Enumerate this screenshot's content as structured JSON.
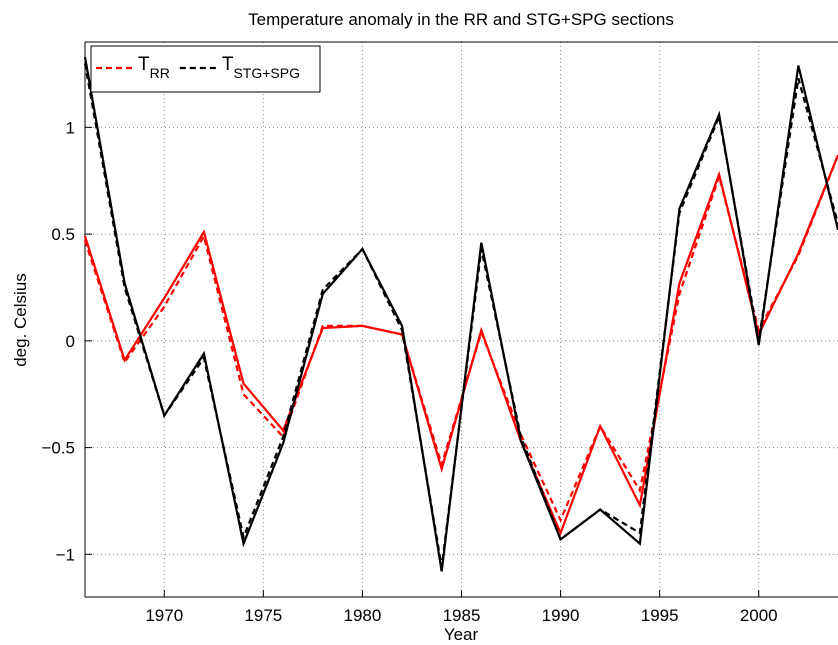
{
  "chart_data": {
    "type": "line",
    "title": "Temperature anomaly in the RR and STG+SPG sections",
    "x_label": "Year",
    "y_label": "deg. Celsius",
    "x": [
      1966,
      1968,
      1970,
      1972,
      1974,
      1976,
      1978,
      1980,
      1982,
      1984,
      1986,
      1988,
      1990,
      1992,
      1994,
      1996,
      1998,
      2000,
      2002,
      2004
    ],
    "series": [
      {
        "color": "#ff0000",
        "dashed": false,
        "values": [
          0.49,
          -0.09,
          0.2,
          0.51,
          -0.2,
          -0.42,
          0.06,
          0.07,
          0.03,
          -0.6,
          0.05,
          -0.47,
          -0.9,
          -0.4,
          -0.77,
          0.27,
          0.78,
          0.03,
          0.41,
          0.87
        ]
      },
      {
        "name": "T",
        "name_sub": "RR",
        "color": "#ff0000",
        "dashed": true,
        "values": [
          0.47,
          -0.1,
          0.16,
          0.49,
          -0.25,
          -0.45,
          0.07,
          0.07,
          0.03,
          -0.58,
          0.04,
          -0.44,
          -0.84,
          -0.4,
          -0.7,
          0.22,
          0.77,
          0.05,
          0.4,
          0.87
        ]
      },
      {
        "color": "#000000",
        "dashed": false,
        "values": [
          1.33,
          0.27,
          -0.35,
          -0.06,
          -0.95,
          -0.48,
          0.22,
          0.43,
          0.07,
          -1.08,
          0.46,
          -0.47,
          -0.93,
          -0.79,
          -0.95,
          0.62,
          1.06,
          -0.02,
          1.29,
          0.52
        ]
      },
      {
        "name": "T",
        "name_sub": "STG+SPG",
        "color": "#000000",
        "dashed": true,
        "values": [
          1.3,
          0.25,
          -0.35,
          -0.08,
          -0.92,
          -0.45,
          0.24,
          0.43,
          0.05,
          -1.06,
          0.43,
          -0.45,
          -0.93,
          -0.79,
          -0.9,
          0.6,
          1.05,
          0.0,
          1.23,
          0.55
        ]
      }
    ],
    "xlim": [
      1966,
      2004
    ],
    "ylim": [
      -1.2,
      1.4
    ],
    "xticks": [
      1970,
      1975,
      1980,
      1985,
      1990,
      1995,
      2000
    ],
    "yticks": [
      {
        "value": -1,
        "label": "−1"
      },
      {
        "value": -0.5,
        "label": "−0.5"
      },
      0,
      0.5,
      1
    ],
    "grid": true,
    "legend": "upper left"
  }
}
